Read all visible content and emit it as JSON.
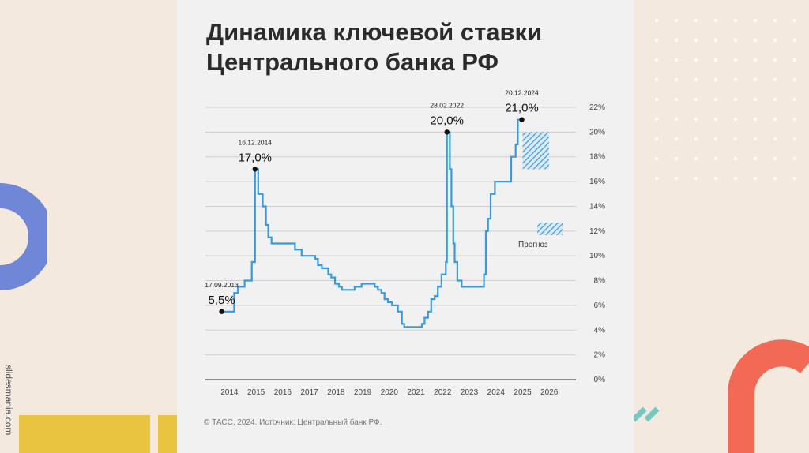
{
  "title_line1": "Динамика ключевой ставки",
  "title_line2": "Центрального банка РФ",
  "source": "© ТАСС, 2024. Источник: Центральный банк РФ.",
  "watermark": "slidesmania.com",
  "colors": {
    "line": "#3a9ad9",
    "forecast": "#3a9ad9",
    "decor_blue": "#6f87d6",
    "decor_yellow": "#e9c441",
    "decor_coral": "#f26a55",
    "decor_teal": "#76c9c1"
  },
  "chart_data": {
    "type": "line",
    "title": "Динамика ключевой ставки Центрального банка РФ",
    "xlim": [
      2013.1,
      2027
    ],
    "ylim": [
      0,
      22
    ],
    "x_ticks": [
      2014,
      2015,
      2016,
      2017,
      2018,
      2019,
      2020,
      2021,
      2022,
      2023,
      2024,
      2025,
      2026
    ],
    "y_ticks": [
      0,
      2,
      4,
      6,
      8,
      10,
      12,
      14,
      16,
      18,
      20,
      22
    ],
    "y_tick_labels": [
      "0%",
      "2%",
      "4%",
      "6%",
      "8%",
      "10%",
      "12%",
      "14%",
      "16%",
      "18%",
      "20%",
      "22%"
    ],
    "grid": true,
    "series": [
      {
        "points": [
          [
            2013.71,
            5.5
          ],
          [
            2014.18,
            5.5
          ],
          [
            2014.18,
            7.0
          ],
          [
            2014.32,
            7.0
          ],
          [
            2014.32,
            7.5
          ],
          [
            2014.57,
            7.5
          ],
          [
            2014.57,
            8.0
          ],
          [
            2014.84,
            8.0
          ],
          [
            2014.84,
            9.5
          ],
          [
            2014.96,
            9.5
          ],
          [
            2014.96,
            17.0
          ],
          [
            2015.08,
            17.0
          ],
          [
            2015.08,
            15.0
          ],
          [
            2015.25,
            15.0
          ],
          [
            2015.25,
            14.0
          ],
          [
            2015.37,
            14.0
          ],
          [
            2015.37,
            12.5
          ],
          [
            2015.46,
            12.5
          ],
          [
            2015.46,
            11.5
          ],
          [
            2015.58,
            11.5
          ],
          [
            2015.58,
            11.0
          ],
          [
            2016.46,
            11.0
          ],
          [
            2016.46,
            10.5
          ],
          [
            2016.71,
            10.5
          ],
          [
            2016.71,
            10.0
          ],
          [
            2017.22,
            10.0
          ],
          [
            2017.22,
            9.75
          ],
          [
            2017.32,
            9.75
          ],
          [
            2017.32,
            9.25
          ],
          [
            2017.47,
            9.25
          ],
          [
            2017.47,
            9.0
          ],
          [
            2017.71,
            9.0
          ],
          [
            2017.71,
            8.5
          ],
          [
            2017.82,
            8.5
          ],
          [
            2017.82,
            8.25
          ],
          [
            2017.96,
            8.25
          ],
          [
            2017.96,
            7.75
          ],
          [
            2018.11,
            7.75
          ],
          [
            2018.11,
            7.5
          ],
          [
            2018.22,
            7.5
          ],
          [
            2018.22,
            7.25
          ],
          [
            2018.7,
            7.25
          ],
          [
            2018.7,
            7.5
          ],
          [
            2018.96,
            7.5
          ],
          [
            2018.96,
            7.75
          ],
          [
            2019.45,
            7.75
          ],
          [
            2019.45,
            7.5
          ],
          [
            2019.57,
            7.5
          ],
          [
            2019.57,
            7.25
          ],
          [
            2019.7,
            7.25
          ],
          [
            2019.7,
            7.0
          ],
          [
            2019.82,
            7.0
          ],
          [
            2019.82,
            6.5
          ],
          [
            2019.95,
            6.5
          ],
          [
            2019.95,
            6.25
          ],
          [
            2020.1,
            6.25
          ],
          [
            2020.1,
            6.0
          ],
          [
            2020.32,
            6.0
          ],
          [
            2020.32,
            5.5
          ],
          [
            2020.47,
            5.5
          ],
          [
            2020.47,
            4.5
          ],
          [
            2020.56,
            4.5
          ],
          [
            2020.56,
            4.25
          ],
          [
            2021.22,
            4.25
          ],
          [
            2021.22,
            4.5
          ],
          [
            2021.32,
            4.5
          ],
          [
            2021.32,
            5.0
          ],
          [
            2021.45,
            5.0
          ],
          [
            2021.45,
            5.5
          ],
          [
            2021.57,
            5.5
          ],
          [
            2021.57,
            6.5
          ],
          [
            2021.7,
            6.5
          ],
          [
            2021.7,
            6.75
          ],
          [
            2021.82,
            6.75
          ],
          [
            2021.82,
            7.5
          ],
          [
            2021.96,
            7.5
          ],
          [
            2021.96,
            8.5
          ],
          [
            2022.12,
            8.5
          ],
          [
            2022.12,
            9.5
          ],
          [
            2022.16,
            9.5
          ],
          [
            2022.16,
            20.0
          ],
          [
            2022.27,
            20.0
          ],
          [
            2022.27,
            17.0
          ],
          [
            2022.33,
            17.0
          ],
          [
            2022.33,
            14.0
          ],
          [
            2022.4,
            14.0
          ],
          [
            2022.4,
            11.0
          ],
          [
            2022.45,
            11.0
          ],
          [
            2022.45,
            9.5
          ],
          [
            2022.55,
            9.5
          ],
          [
            2022.55,
            8.0
          ],
          [
            2022.71,
            8.0
          ],
          [
            2022.71,
            7.5
          ],
          [
            2023.55,
            7.5
          ],
          [
            2023.55,
            8.5
          ],
          [
            2023.62,
            8.5
          ],
          [
            2023.62,
            12.0
          ],
          [
            2023.7,
            12.0
          ],
          [
            2023.7,
            13.0
          ],
          [
            2023.8,
            13.0
          ],
          [
            2023.8,
            15.0
          ],
          [
            2023.96,
            15.0
          ],
          [
            2023.96,
            16.0
          ],
          [
            2024.57,
            16.0
          ],
          [
            2024.57,
            18.0
          ],
          [
            2024.74,
            18.0
          ],
          [
            2024.74,
            19.0
          ],
          [
            2024.82,
            19.0
          ],
          [
            2024.82,
            21.0
          ],
          [
            2024.97,
            21.0
          ]
        ]
      }
    ],
    "annotations": [
      {
        "date": "17.09.2013",
        "value": "5,5%",
        "x": 2013.71,
        "y": 5.5
      },
      {
        "date": "16.12.2014",
        "value": "17,0%",
        "x": 2014.96,
        "y": 17.0
      },
      {
        "date": "28.02.2022",
        "value": "20,0%",
        "x": 2022.16,
        "y": 20.0
      },
      {
        "date": "20.12.2024",
        "value": "21,0%",
        "x": 2024.97,
        "y": 21.0
      }
    ],
    "forecast_range": {
      "x0": 2025.0,
      "x1": 2025.99,
      "y0": 17.0,
      "y1": 20.0
    },
    "legend": {
      "label": "Прогноз",
      "placement": "right"
    }
  }
}
